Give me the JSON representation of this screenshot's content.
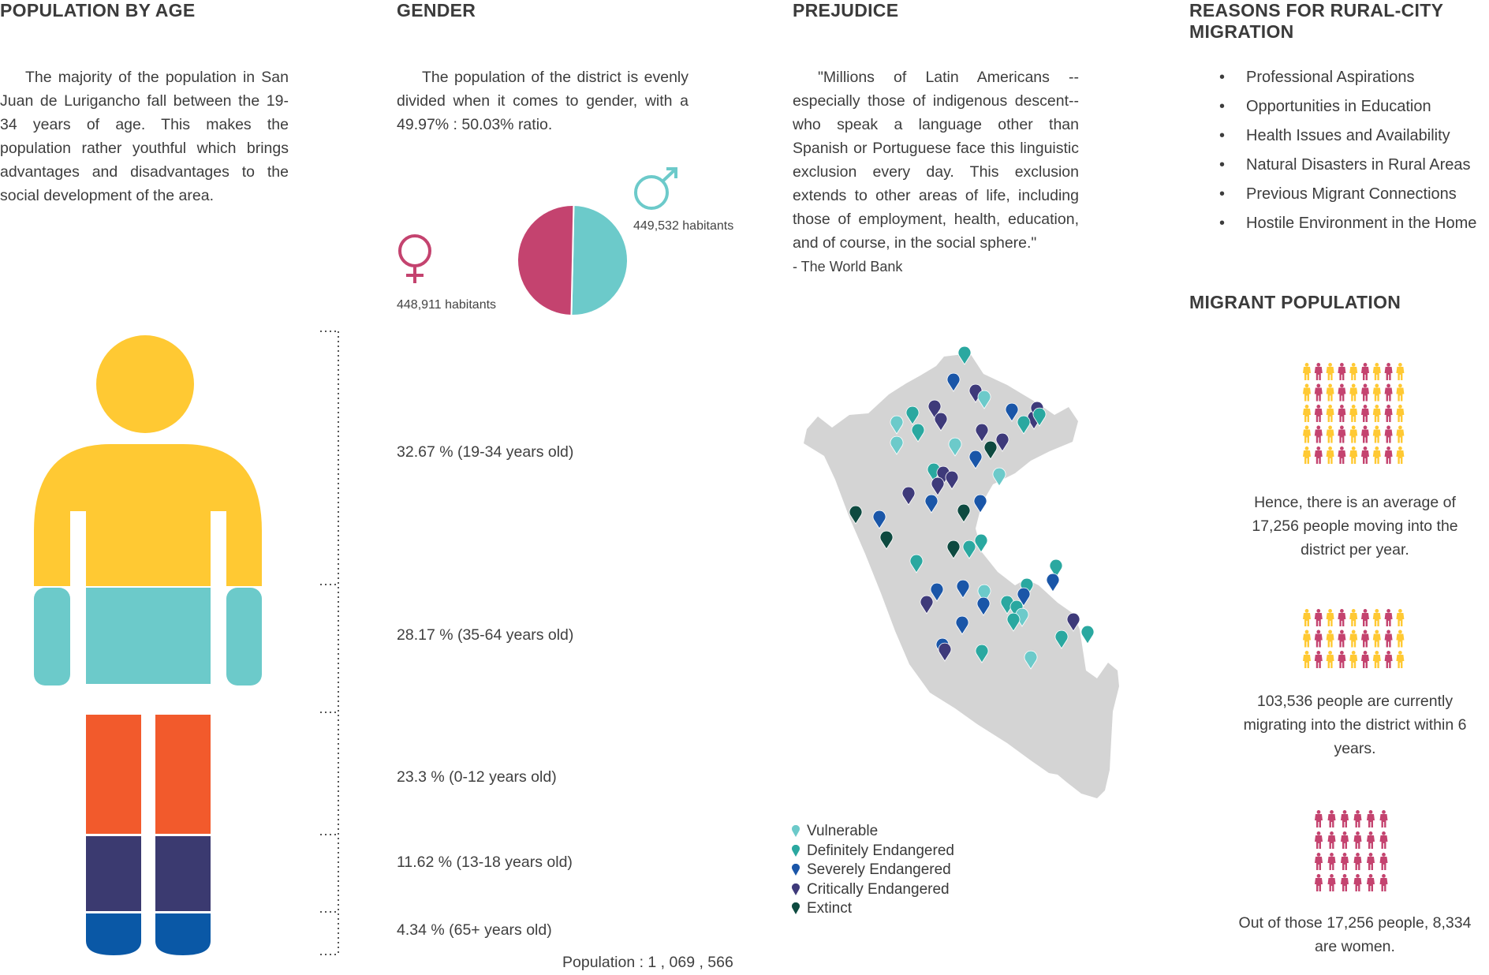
{
  "colors": {
    "yellow": "#FFC933",
    "teal": "#6CCACA",
    "orange": "#F25A2C",
    "indigo": "#3B3A70",
    "blue": "#0A58A6",
    "female": "#C4436F",
    "male": "#6CCACA",
    "map": "#D4D4D4"
  },
  "population_by_age": {
    "heading": "POPULATION BY AGE",
    "text": "The majority of the population in San Juan de Lurigancho fall between the 19-34 years of age. This makes the population rather youthful which brings advantages and disadvantages to the social development of the area.",
    "groups": [
      {
        "label": "32.67 % (19-34 years old)",
        "color": "yellow"
      },
      {
        "label": "28.17 % (35-64 years old)",
        "color": "teal"
      },
      {
        "label": "23.3 % (0-12 years old)",
        "color": "orange"
      },
      {
        "label": "11.62 % (13-18 years old)",
        "color": "indigo"
      },
      {
        "label": "4.34 % (65+ years old)",
        "color": "blue"
      }
    ],
    "total": "Population :  1 , 069 , 566"
  },
  "gender": {
    "heading": "GENDER",
    "text": "The population of the district is evenly divided when it comes to gender, with a 49.97% : 50.03% ratio.",
    "female_label": "448,911 habitants",
    "male_label": "449,532 habitants",
    "female_icon": "female-symbol-icon",
    "male_icon": "male-symbol-icon"
  },
  "chart_data": {
    "type": "pie",
    "categories": [
      "Female",
      "Male"
    ],
    "values": [
      448911,
      449532
    ],
    "colors": [
      "#C4436F",
      "#6CCACA"
    ]
  },
  "prejudice": {
    "heading": "PREJUDICE",
    "quote": "\"Millions of Latin Americans --especially those of indigenous descent-- who speak a language other than Spanish or Portuguese face this linguistic exclusion every day. This exclusion extends to other areas of life, including those of employment, health, education, and of course, in the social sphere.\"",
    "attribution": "- The World Bank",
    "legend": [
      {
        "label": "Vulnerable",
        "color": "#6CCACA"
      },
      {
        "label": "Definitely Endangered",
        "color": "#2AA8A0"
      },
      {
        "label": "Severely Endangered",
        "color": "#1A56A8"
      },
      {
        "label": "Critically Endangered",
        "color": "#3E3A7A"
      },
      {
        "label": "Extinct",
        "color": "#0E4A40"
      }
    ]
  },
  "reasons": {
    "heading": "REASONS FOR RURAL-CITY MIGRATION",
    "items": [
      "Professional Aspirations",
      "Opportunities in Education",
      "Health Issues and Availability",
      "Natural Disasters in Rural Areas",
      "Previous Migrant Connections",
      "Hostile Environment in the Home"
    ]
  },
  "migrant": {
    "heading": "MIGRANT POPULATION",
    "stat1": "Hence, there is an average of 17,256  people moving into the district per year.",
    "stat2": "103,536 people are currently migrating into the district within 6 years.",
    "stat3": "Out of those 17,256 people, 8,334 are women."
  }
}
